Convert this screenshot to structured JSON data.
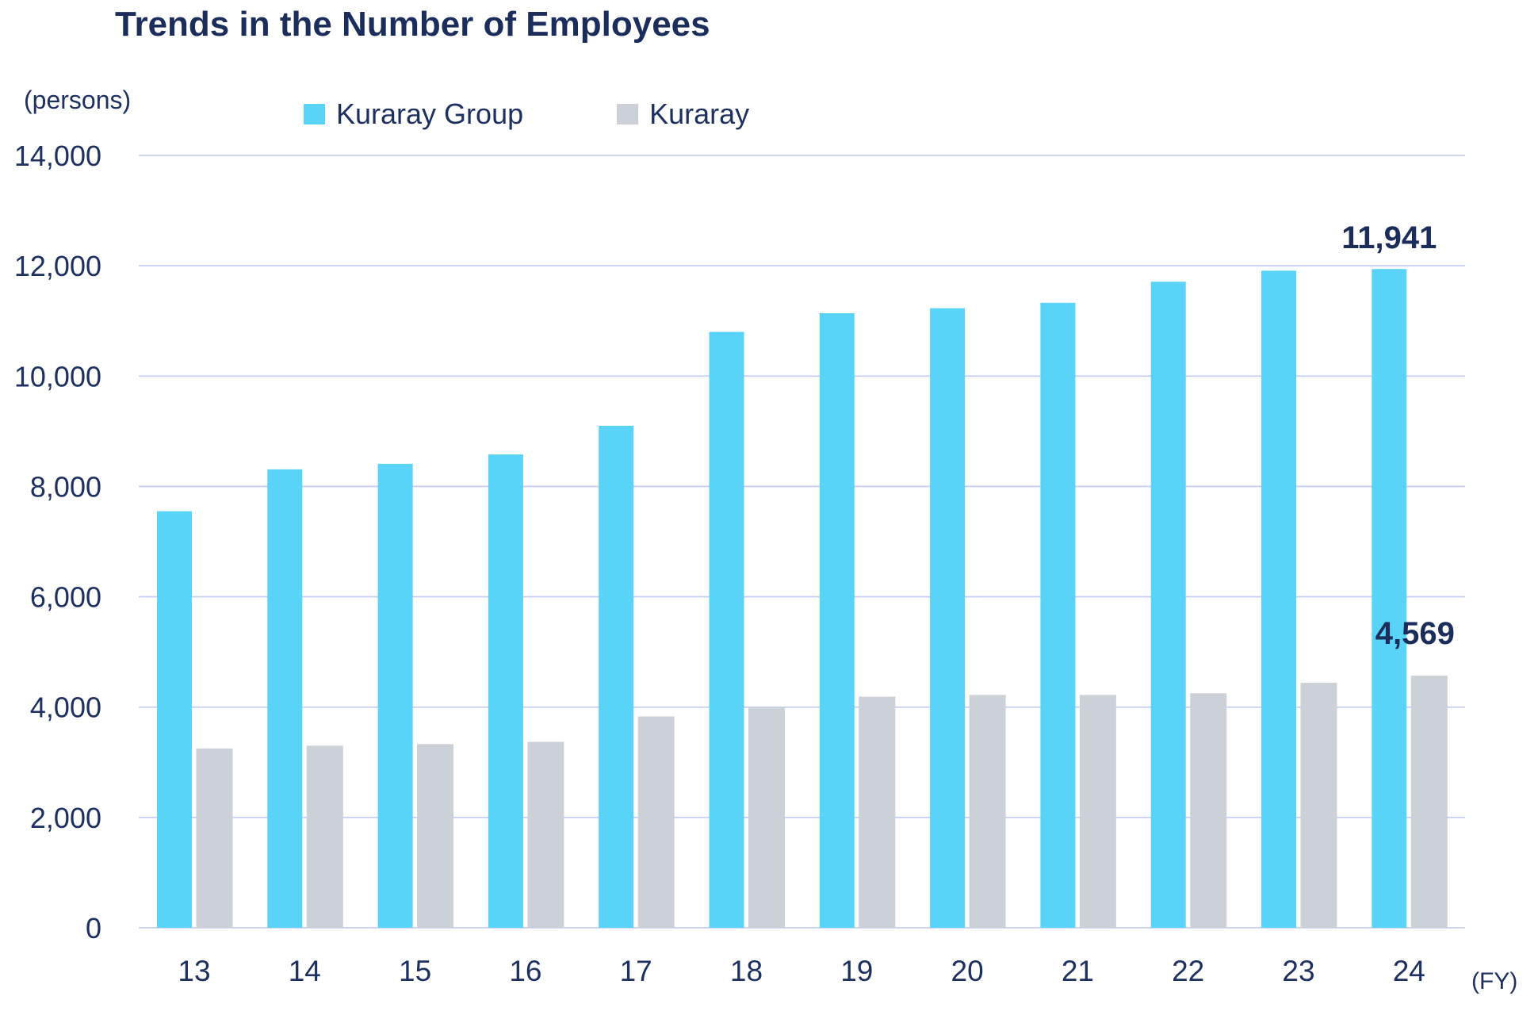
{
  "page": {
    "title": "Trends in the Number of Employees",
    "unit_label": "(persons)",
    "fy_label": "(FY)"
  },
  "legend": {
    "items": [
      {
        "label": "Kuraray Group",
        "color": "#59d3f7"
      },
      {
        "label": "Kuraray",
        "color": "#ccd0d7"
      }
    ]
  },
  "chart_data": {
    "type": "bar",
    "title": "Trends in the Number of Employees",
    "unit": "(persons)",
    "x_axis_suffix": "(FY)",
    "categories": [
      "13",
      "14",
      "15",
      "16",
      "17",
      "18",
      "19",
      "20",
      "21",
      "22",
      "23",
      "24"
    ],
    "series": [
      {
        "name": "Kuraray Group",
        "color": "#59d3f7",
        "values": [
          7550,
          8310,
          8410,
          8580,
          9100,
          10800,
          11140,
          11230,
          11330,
          11710,
          11910,
          11941
        ]
      },
      {
        "name": "Kuraray",
        "color": "#ccd0d7",
        "values": [
          3250,
          3300,
          3330,
          3370,
          3830,
          4000,
          4190,
          4220,
          4220,
          4250,
          4440,
          4569
        ]
      }
    ],
    "y_ticks": [
      0,
      2000,
      4000,
      6000,
      8000,
      10000,
      12000,
      14000
    ],
    "ylim": [
      0,
      14000
    ],
    "grid": true,
    "gridline_color": "#c7cff1",
    "legend_position": "top",
    "annotations": [
      {
        "series": "Kuraray Group",
        "category": "24",
        "text": "11,941"
      },
      {
        "series": "Kuraray",
        "category": "24",
        "text": "4,569"
      }
    ]
  }
}
